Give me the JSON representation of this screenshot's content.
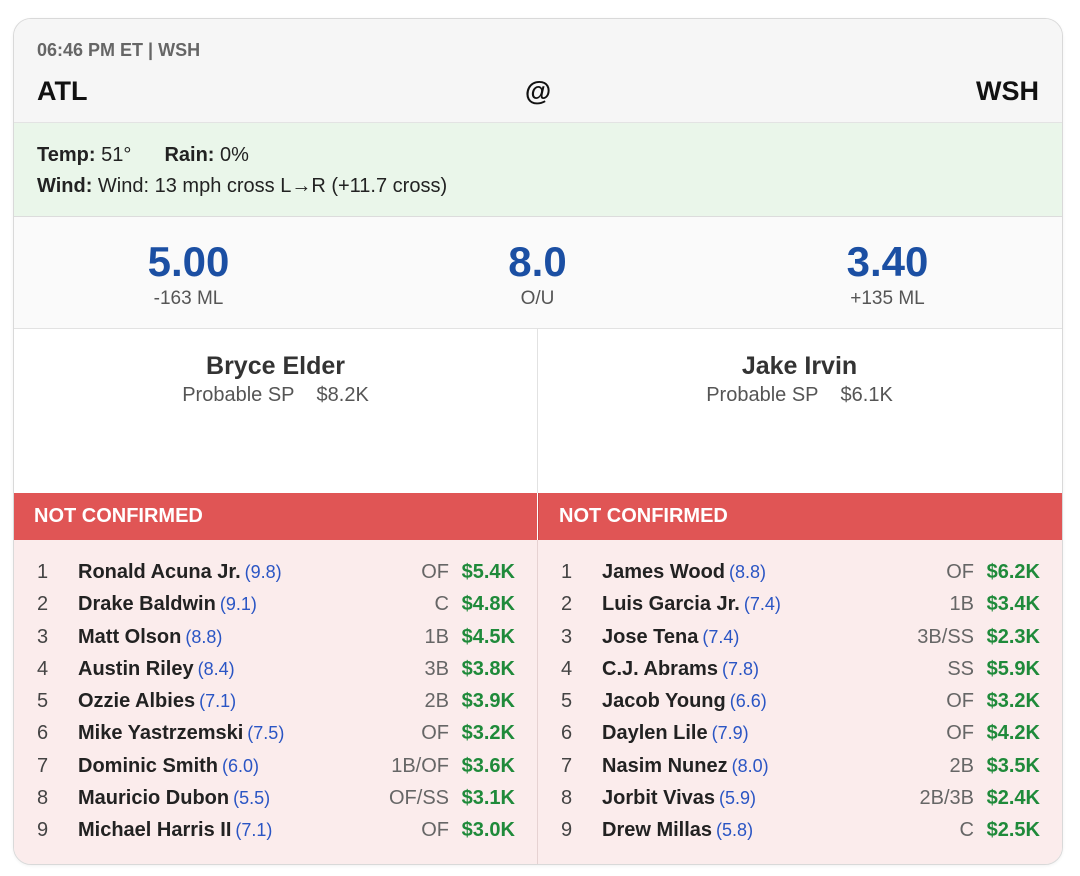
{
  "game": {
    "time_line": "06:46 PM ET | WSH",
    "away_team": "ATL",
    "at": "@",
    "home_team": "WSH"
  },
  "weather": {
    "temp_label": "Temp:",
    "temp_value": "51°",
    "rain_label": "Rain:",
    "rain_value": "0%",
    "wind_label": "Wind:",
    "wind_value": "Wind: 13 mph cross L→R (+11.7 cross)"
  },
  "odds": {
    "away_total": "5.00",
    "away_ml": "-163 ML",
    "ou_total": "8.0",
    "ou_label": "O/U",
    "home_total": "3.40",
    "home_ml": "+135 ML"
  },
  "pitchers": {
    "away": {
      "name": "Bryce Elder",
      "role": "Probable SP",
      "salary": "$8.2K"
    },
    "home": {
      "name": "Jake Irvin",
      "role": "Probable SP",
      "salary": "$6.1K"
    }
  },
  "status": {
    "away": "NOT CONFIRMED",
    "home": "NOT CONFIRMED"
  },
  "lineups": {
    "away": [
      {
        "order": "1",
        "name": "Ronald Acuna Jr.",
        "rating": "(9.8)",
        "pos": "OF",
        "salary": "$5.4K"
      },
      {
        "order": "2",
        "name": "Drake Baldwin",
        "rating": "(9.1)",
        "pos": "C",
        "salary": "$4.8K"
      },
      {
        "order": "3",
        "name": "Matt Olson",
        "rating": "(8.8)",
        "pos": "1B",
        "salary": "$4.5K"
      },
      {
        "order": "4",
        "name": "Austin Riley",
        "rating": "(8.4)",
        "pos": "3B",
        "salary": "$3.8K"
      },
      {
        "order": "5",
        "name": "Ozzie Albies",
        "rating": "(7.1)",
        "pos": "2B",
        "salary": "$3.9K"
      },
      {
        "order": "6",
        "name": "Mike Yastrzemski",
        "rating": "(7.5)",
        "pos": "OF",
        "salary": "$3.2K"
      },
      {
        "order": "7",
        "name": "Dominic Smith",
        "rating": "(6.0)",
        "pos": "1B/OF",
        "salary": "$3.6K"
      },
      {
        "order": "8",
        "name": "Mauricio Dubon",
        "rating": "(5.5)",
        "pos": "OF/SS",
        "salary": "$3.1K"
      },
      {
        "order": "9",
        "name": "Michael Harris II",
        "rating": "(7.1)",
        "pos": "OF",
        "salary": "$3.0K"
      }
    ],
    "home": [
      {
        "order": "1",
        "name": "James Wood",
        "rating": "(8.8)",
        "pos": "OF",
        "salary": "$6.2K"
      },
      {
        "order": "2",
        "name": "Luis Garcia Jr.",
        "rating": "(7.4)",
        "pos": "1B",
        "salary": "$3.4K"
      },
      {
        "order": "3",
        "name": "Jose Tena",
        "rating": "(7.4)",
        "pos": "3B/SS",
        "salary": "$2.3K"
      },
      {
        "order": "4",
        "name": "C.J. Abrams",
        "rating": "(7.8)",
        "pos": "SS",
        "salary": "$5.9K"
      },
      {
        "order": "5",
        "name": "Jacob Young",
        "rating": "(6.6)",
        "pos": "OF",
        "salary": "$3.2K"
      },
      {
        "order": "6",
        "name": "Daylen Lile",
        "rating": "(7.9)",
        "pos": "OF",
        "salary": "$4.2K"
      },
      {
        "order": "7",
        "name": "Nasim Nunez",
        "rating": "(8.0)",
        "pos": "2B",
        "salary": "$3.5K"
      },
      {
        "order": "8",
        "name": "Jorbit Vivas",
        "rating": "(5.9)",
        "pos": "2B/3B",
        "salary": "$2.4K"
      },
      {
        "order": "9",
        "name": "Drew Millas",
        "rating": "(5.8)",
        "pos": "C",
        "salary": "$2.5K"
      }
    ]
  }
}
